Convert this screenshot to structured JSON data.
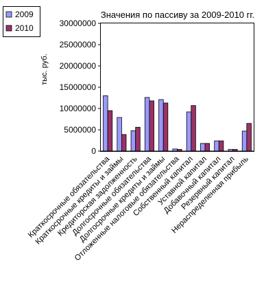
{
  "chart_data": {
    "type": "bar",
    "title": "Значения по пассиву  за 2009-2010 гг.",
    "ylabel": "тыс. руб.",
    "xlabel": "",
    "ylim": [
      0,
      30000000
    ],
    "yticks": [
      0,
      5000000,
      10000000,
      15000000,
      20000000,
      25000000,
      30000000
    ],
    "ytick_labels": [
      "0",
      "5000000",
      "10000000",
      "15000000",
      "20000000",
      "25000000",
      "30000000"
    ],
    "grid": false,
    "legend_position": "top-left",
    "categories": [
      "Краткосрочные обязательства",
      "Краткосрочные кредиты и займы",
      "Кредиторская задолженность",
      "Долгосрочные обязательства",
      "Долгосрочные кредиты и займы",
      "Отложенные налоговые обязательства",
      "Собственный капитал",
      "Уставной капитал",
      "Добавочный капитал",
      "Резервный капитал",
      "Нераспределенная прибыль"
    ],
    "series": [
      {
        "name": "2009",
        "color": "#9999ff",
        "values": [
          13000000,
          7900000,
          4800000,
          12600000,
          12100000,
          500000,
          9200000,
          1800000,
          2400000,
          400000,
          4700000
        ]
      },
      {
        "name": "2010",
        "color": "#993366",
        "values": [
          9500000,
          3900000,
          5600000,
          11800000,
          11300000,
          400000,
          10700000,
          1800000,
          2400000,
          400000,
          6500000
        ]
      }
    ]
  }
}
